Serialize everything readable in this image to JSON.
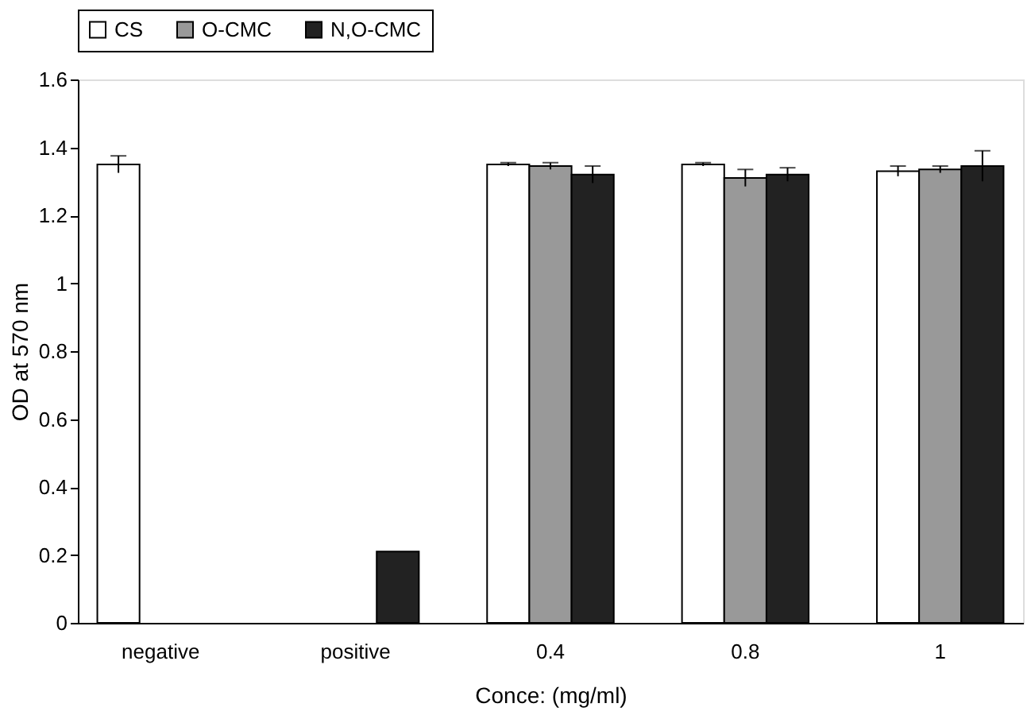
{
  "chart_data": {
    "type": "bar",
    "xlabel": "Conce: (mg/ml)",
    "ylabel": "OD at 570 nm",
    "categories": [
      "negative",
      "positive",
      "0.4",
      "0.8",
      "1"
    ],
    "series": [
      {
        "name": "CS",
        "color": "#ffffff",
        "values": [
          1.35,
          null,
          1.35,
          1.35,
          1.33
        ],
        "errors": [
          0.025,
          null,
          0.005,
          0.005,
          0.015
        ]
      },
      {
        "name": "O-CMC",
        "color": "#999999",
        "values": [
          null,
          null,
          1.345,
          1.31,
          1.335
        ],
        "errors": [
          null,
          null,
          0.01,
          0.025,
          0.01
        ]
      },
      {
        "name": "N,O-CMC",
        "color": "#222222",
        "values": [
          null,
          0.21,
          1.32,
          1.32,
          1.345
        ],
        "errors": [
          null,
          null,
          0.025,
          0.02,
          0.045
        ]
      }
    ],
    "ylim": [
      0,
      1.6
    ],
    "yticks": [
      0,
      0.2,
      0.4,
      0.6,
      0.8,
      1,
      1.2,
      1.4,
      1.6
    ],
    "grid": false,
    "legend": "top"
  }
}
